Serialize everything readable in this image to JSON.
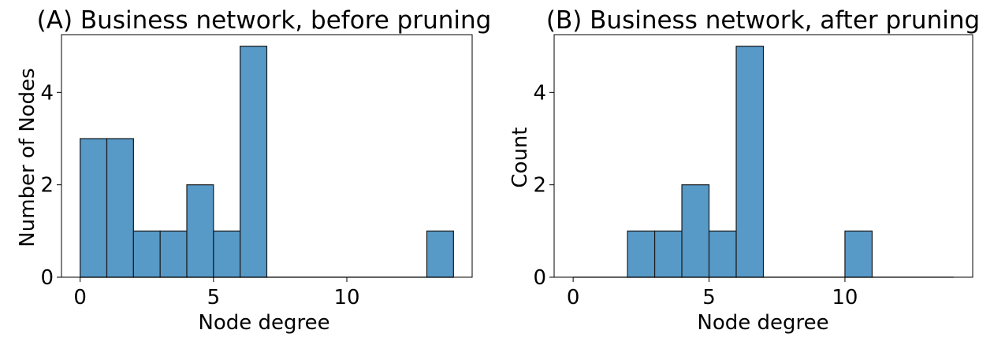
{
  "chart_data": [
    {
      "type": "bar",
      "title": "(A) Business network, before pruning",
      "xlabel": "Node degree",
      "ylabel": "Number of Nodes",
      "xlim": [
        -0.7,
        14.7
      ],
      "ylim": [
        0,
        5.25
      ],
      "xticks": [
        0,
        5,
        10
      ],
      "yticks": [
        0,
        2,
        4
      ],
      "bar_color": "#5799C7",
      "edge_color": "#1a1a1a",
      "bins": [
        {
          "start": 0,
          "end": 1,
          "value": 3
        },
        {
          "start": 1,
          "end": 2,
          "value": 3
        },
        {
          "start": 2,
          "end": 3,
          "value": 1
        },
        {
          "start": 3,
          "end": 4,
          "value": 1
        },
        {
          "start": 4,
          "end": 5,
          "value": 2
        },
        {
          "start": 5,
          "end": 6,
          "value": 1
        },
        {
          "start": 6,
          "end": 7,
          "value": 5
        },
        {
          "start": 7,
          "end": 8,
          "value": 0
        },
        {
          "start": 8,
          "end": 9,
          "value": 0
        },
        {
          "start": 9,
          "end": 10,
          "value": 0
        },
        {
          "start": 10,
          "end": 11,
          "value": 0
        },
        {
          "start": 11,
          "end": 12,
          "value": 0
        },
        {
          "start": 12,
          "end": 13,
          "value": 0
        },
        {
          "start": 13,
          "end": 14,
          "value": 1
        }
      ]
    },
    {
      "type": "bar",
      "title": "(B) Business network, after pruning",
      "xlabel": "Node degree",
      "ylabel": "Count",
      "xlim": [
        -0.7,
        14.7
      ],
      "ylim": [
        0,
        5.25
      ],
      "xticks": [
        0,
        5,
        10
      ],
      "yticks": [
        0,
        2,
        4
      ],
      "bar_color": "#5799C7",
      "edge_color": "#1a1a1a",
      "bins": [
        {
          "start": 0,
          "end": 1,
          "value": 0
        },
        {
          "start": 1,
          "end": 2,
          "value": 0
        },
        {
          "start": 2,
          "end": 3,
          "value": 1
        },
        {
          "start": 3,
          "end": 4,
          "value": 1
        },
        {
          "start": 4,
          "end": 5,
          "value": 2
        },
        {
          "start": 5,
          "end": 6,
          "value": 1
        },
        {
          "start": 6,
          "end": 7,
          "value": 5
        },
        {
          "start": 7,
          "end": 8,
          "value": 0
        },
        {
          "start": 8,
          "end": 9,
          "value": 0
        },
        {
          "start": 9,
          "end": 10,
          "value": 0
        },
        {
          "start": 10,
          "end": 11,
          "value": 1
        },
        {
          "start": 11,
          "end": 12,
          "value": 0
        },
        {
          "start": 12,
          "end": 13,
          "value": 0
        },
        {
          "start": 13,
          "end": 14,
          "value": 0
        }
      ]
    }
  ]
}
